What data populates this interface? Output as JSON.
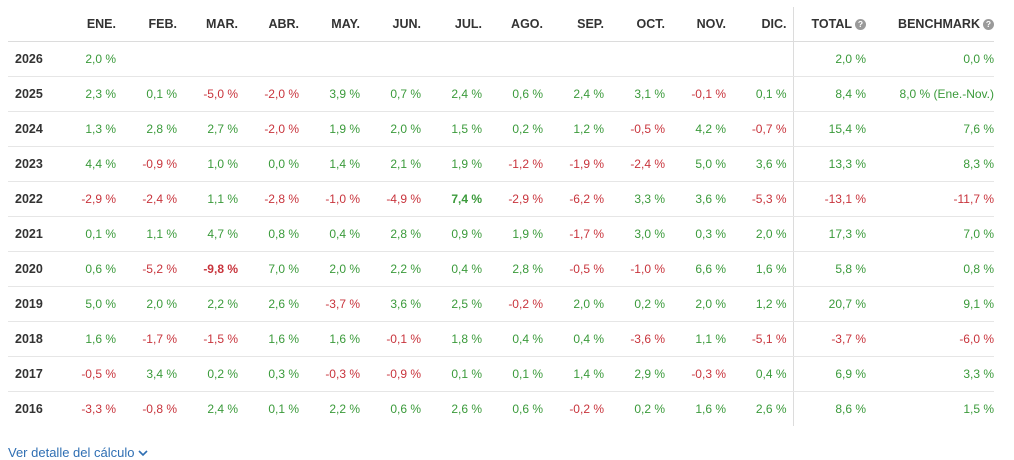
{
  "header": {
    "months": [
      "ENE.",
      "FEB.",
      "MAR.",
      "ABR.",
      "MAY.",
      "JUN.",
      "JUL.",
      "AGO.",
      "SEP.",
      "OCT.",
      "NOV.",
      "DIC."
    ],
    "total_label": "TOTAL",
    "benchmark_label": "BENCHMARK",
    "help_glyph": "?"
  },
  "rows": [
    {
      "year": "2026",
      "months": [
        "2,0 %",
        "",
        "",
        "",
        "",
        "",
        "",
        "",
        "",
        "",
        "",
        ""
      ],
      "total": "2,0 %",
      "benchmark": "0,0 %"
    },
    {
      "year": "2025",
      "months": [
        "2,3 %",
        "0,1 %",
        "-5,0 %",
        "-2,0 %",
        "3,9 %",
        "0,7 %",
        "2,4 %",
        "0,6 %",
        "2,4 %",
        "3,1 %",
        "-0,1 %",
        "0,1 %"
      ],
      "total": "8,4 %",
      "benchmark": "8,0 % (Ene.-Nov.)"
    },
    {
      "year": "2024",
      "months": [
        "1,3 %",
        "2,8 %",
        "2,7 %",
        "-2,0 %",
        "1,9 %",
        "2,0 %",
        "1,5 %",
        "0,2 %",
        "1,2 %",
        "-0,5 %",
        "4,2 %",
        "-0,7 %"
      ],
      "total": "15,4 %",
      "benchmark": "7,6 %"
    },
    {
      "year": "2023",
      "months": [
        "4,4 %",
        "-0,9 %",
        "1,0 %",
        "0,0 %",
        "1,4 %",
        "2,1 %",
        "1,9 %",
        "-1,2 %",
        "-1,9 %",
        "-2,4 %",
        "5,0 %",
        "3,6 %"
      ],
      "total": "13,3 %",
      "benchmark": "8,3 %"
    },
    {
      "year": "2022",
      "months": [
        "-2,9 %",
        "-2,4 %",
        "1,1 %",
        "-2,8 %",
        "-1,0 %",
        "-4,9 %",
        "7,4 %",
        "-2,9 %",
        "-6,2 %",
        "3,3 %",
        "3,6 %",
        "-5,3 %"
      ],
      "total": "-13,1 %",
      "benchmark": "-11,7 %"
    },
    {
      "year": "2021",
      "months": [
        "0,1 %",
        "1,1 %",
        "4,7 %",
        "0,8 %",
        "0,4 %",
        "2,8 %",
        "0,9 %",
        "1,9 %",
        "-1,7 %",
        "3,0 %",
        "0,3 %",
        "2,0 %"
      ],
      "total": "17,3 %",
      "benchmark": "7,0 %"
    },
    {
      "year": "2020",
      "months": [
        "0,6 %",
        "-5,2 %",
        "-9,8 %",
        "7,0 %",
        "2,0 %",
        "2,2 %",
        "0,4 %",
        "2,8 %",
        "-0,5 %",
        "-1,0 %",
        "6,6 %",
        "1,6 %"
      ],
      "total": "5,8 %",
      "benchmark": "0,8 %"
    },
    {
      "year": "2019",
      "months": [
        "5,0 %",
        "2,0 %",
        "2,2 %",
        "2,6 %",
        "-3,7 %",
        "3,6 %",
        "2,5 %",
        "-0,2 %",
        "2,0 %",
        "0,2 %",
        "2,0 %",
        "1,2 %"
      ],
      "total": "20,7 %",
      "benchmark": "9,1 %"
    },
    {
      "year": "2018",
      "months": [
        "1,6 %",
        "-1,7 %",
        "-1,5 %",
        "1,6 %",
        "1,6 %",
        "-0,1 %",
        "1,8 %",
        "0,4 %",
        "0,4 %",
        "-3,6 %",
        "1,1 %",
        "-5,1 %"
      ],
      "total": "-3,7 %",
      "benchmark": "-6,0 %"
    },
    {
      "year": "2017",
      "months": [
        "-0,5 %",
        "3,4 %",
        "0,2 %",
        "0,3 %",
        "-0,3 %",
        "-0,9 %",
        "0,1 %",
        "0,1 %",
        "1,4 %",
        "2,9 %",
        "-0,3 %",
        "0,4 %"
      ],
      "total": "6,9 %",
      "benchmark": "3,3 %"
    },
    {
      "year": "2016",
      "months": [
        "-3,3 %",
        "-0,8 %",
        "2,4 %",
        "0,1 %",
        "2,2 %",
        "0,6 %",
        "2,6 %",
        "0,6 %",
        "-0,2 %",
        "0,2 %",
        "1,6 %",
        "2,6 %"
      ],
      "total": "8,6 %",
      "benchmark": "1,5 %"
    }
  ],
  "highlights": {
    "best": "7,4 %",
    "worst": "-9,8 %"
  },
  "colors": {
    "positive": "#3a9a3a",
    "negative": "#c8343c",
    "link": "#2f6fb3"
  },
  "footer": {
    "detail_link": "Ver detalle del cálculo"
  }
}
